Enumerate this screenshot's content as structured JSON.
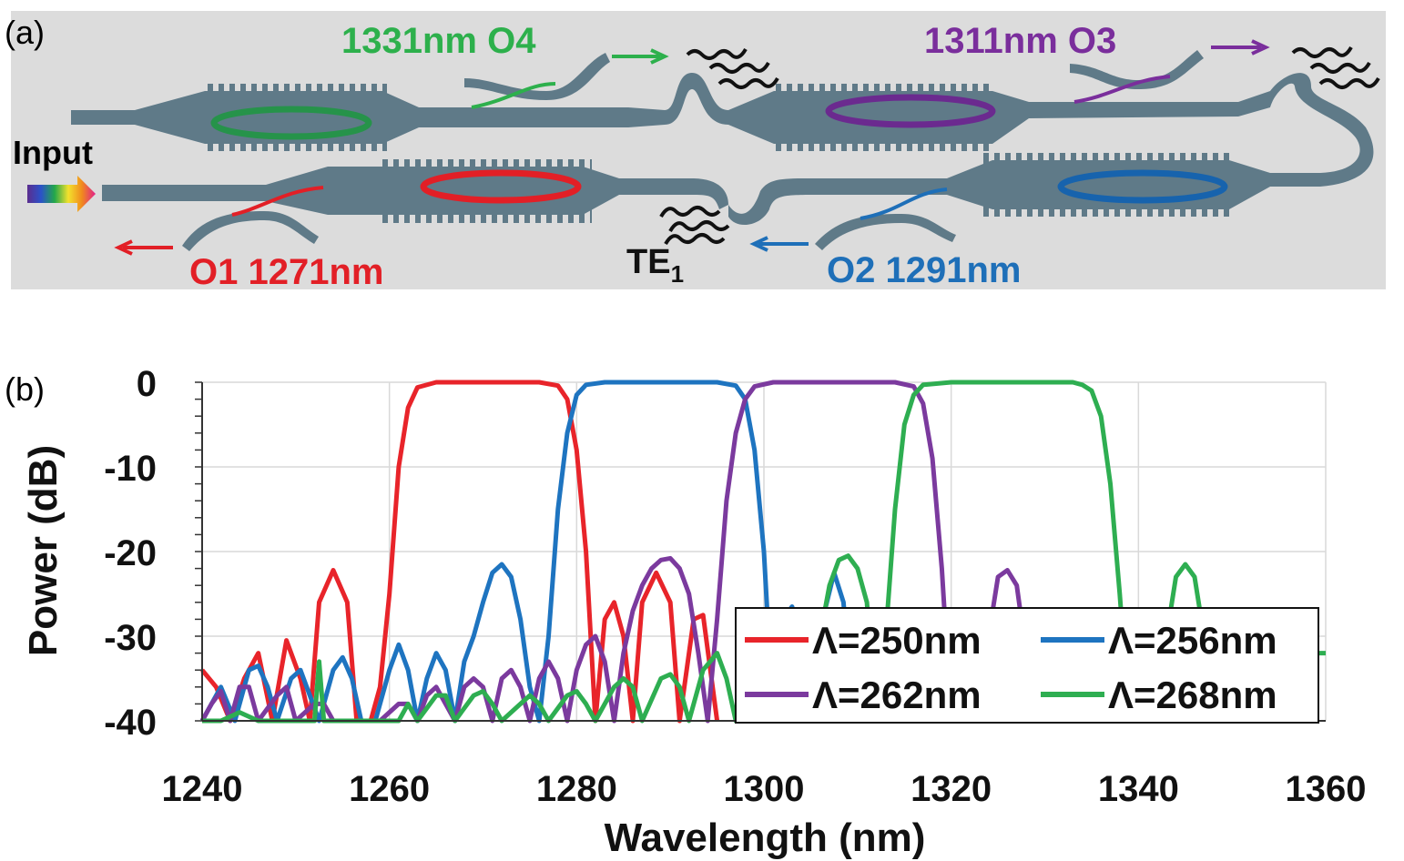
{
  "panel_a": {
    "label": "(a)",
    "input_label": "Input",
    "mode_label_main": "TE",
    "mode_label_sub": "1",
    "ports": [
      {
        "text": "1331nm O4",
        "color": "#2db04c"
      },
      {
        "text": "1311nm O3",
        "color": "#7a2e9c"
      },
      {
        "text": "O1 1271nm",
        "color": "#e21f26"
      },
      {
        "text": "O2 1291nm",
        "color": "#1e6fb8"
      }
    ]
  },
  "panel_b": {
    "label": "(b)"
  },
  "chart_data": {
    "type": "line",
    "xlabel": "Wavelength (nm)",
    "ylabel": "Power (dB)",
    "xlim": [
      1240,
      1360
    ],
    "ylim": [
      -40,
      0
    ],
    "xticks": [
      1240,
      1260,
      1280,
      1300,
      1320,
      1340,
      1360
    ],
    "yticks": [
      0,
      -10,
      -20,
      -30,
      -40
    ],
    "grid": true,
    "legend_position": "bottom-right",
    "series": [
      {
        "name": "Λ=250nm",
        "color": "#e8242a",
        "points": [
          [
            1240,
            -34
          ],
          [
            1241.5,
            -36
          ],
          [
            1243,
            -40
          ],
          [
            1244.5,
            -35
          ],
          [
            1246,
            -32
          ],
          [
            1247.5,
            -40
          ],
          [
            1249,
            -30.5
          ],
          [
            1250.5,
            -35
          ],
          [
            1251.5,
            -40
          ],
          [
            1252.5,
            -26
          ],
          [
            1254,
            -22.2
          ],
          [
            1255.5,
            -26
          ],
          [
            1256.5,
            -40
          ],
          [
            1258,
            -40
          ],
          [
            1259,
            -36
          ],
          [
            1260,
            -25
          ],
          [
            1261,
            -10
          ],
          [
            1262,
            -3
          ],
          [
            1263,
            -0.6
          ],
          [
            1265,
            0
          ],
          [
            1268,
            0
          ],
          [
            1272,
            0
          ],
          [
            1276,
            0
          ],
          [
            1278,
            -0.4
          ],
          [
            1279,
            -2
          ],
          [
            1280,
            -8
          ],
          [
            1281,
            -20
          ],
          [
            1282,
            -40
          ],
          [
            1283,
            -28
          ],
          [
            1284,
            -26
          ],
          [
            1285,
            -30
          ],
          [
            1286,
            -40
          ],
          [
            1287,
            -26
          ],
          [
            1288.5,
            -22.5
          ],
          [
            1290,
            -26
          ],
          [
            1291,
            -40
          ],
          [
            1292.5,
            -28
          ],
          [
            1293.5,
            -27.5
          ],
          [
            1295,
            -40
          ]
        ]
      },
      {
        "name": "Λ=256nm",
        "color": "#1e74c0",
        "points": [
          [
            1240,
            -40
          ],
          [
            1242,
            -36
          ],
          [
            1243.5,
            -40
          ],
          [
            1245,
            -34
          ],
          [
            1246,
            -33.5
          ],
          [
            1247,
            -36
          ],
          [
            1248,
            -40
          ],
          [
            1249.5,
            -35
          ],
          [
            1250.5,
            -34
          ],
          [
            1251.5,
            -37
          ],
          [
            1252.5,
            -40
          ],
          [
            1254,
            -34
          ],
          [
            1255,
            -32.5
          ],
          [
            1256,
            -35
          ],
          [
            1257,
            -40
          ],
          [
            1258.5,
            -40
          ],
          [
            1260,
            -34
          ],
          [
            1261,
            -31
          ],
          [
            1262,
            -34
          ],
          [
            1263,
            -40
          ],
          [
            1264,
            -35
          ],
          [
            1265,
            -32
          ],
          [
            1266,
            -34
          ],
          [
            1267,
            -40
          ],
          [
            1268,
            -33
          ],
          [
            1269,
            -30
          ],
          [
            1270,
            -26
          ],
          [
            1271,
            -22.5
          ],
          [
            1272,
            -21.5
          ],
          [
            1273,
            -23
          ],
          [
            1274,
            -28
          ],
          [
            1275,
            -36
          ],
          [
            1276,
            -40
          ],
          [
            1277,
            -30
          ],
          [
            1278,
            -15
          ],
          [
            1279,
            -6
          ],
          [
            1280,
            -1.5
          ],
          [
            1281,
            -0.3
          ],
          [
            1283,
            0
          ],
          [
            1290,
            0
          ],
          [
            1295,
            0
          ],
          [
            1297,
            -0.4
          ],
          [
            1298,
            -2
          ],
          [
            1299,
            -8
          ],
          [
            1300,
            -20
          ],
          [
            1301,
            -40
          ],
          [
            1302,
            -28
          ],
          [
            1303,
            -26.5
          ],
          [
            1304,
            -30
          ],
          [
            1305,
            -40
          ],
          [
            1306.5,
            -27
          ],
          [
            1307.5,
            -22.5
          ],
          [
            1308.5,
            -26
          ],
          [
            1309.5,
            -40
          ]
        ]
      },
      {
        "name": "Λ=262nm",
        "color": "#7b3a9e",
        "points": [
          [
            1240,
            -40
          ],
          [
            1241,
            -38
          ],
          [
            1242,
            -36.5
          ],
          [
            1243,
            -40
          ],
          [
            1244,
            -36
          ],
          [
            1245,
            -36
          ],
          [
            1246,
            -40
          ],
          [
            1248,
            -37
          ],
          [
            1249,
            -36
          ],
          [
            1250,
            -40
          ],
          [
            1252,
            -38
          ],
          [
            1253,
            -38
          ],
          [
            1254,
            -40
          ],
          [
            1256,
            -40
          ],
          [
            1259,
            -40
          ],
          [
            1261,
            -38
          ],
          [
            1262,
            -38
          ],
          [
            1263,
            -40
          ],
          [
            1264,
            -37
          ],
          [
            1265,
            -36
          ],
          [
            1266,
            -38
          ],
          [
            1267,
            -40
          ],
          [
            1268,
            -36
          ],
          [
            1269,
            -35
          ],
          [
            1270,
            -36
          ],
          [
            1271,
            -40
          ],
          [
            1272,
            -35
          ],
          [
            1273,
            -34
          ],
          [
            1274,
            -36
          ],
          [
            1275,
            -40
          ],
          [
            1276,
            -35
          ],
          [
            1277,
            -33
          ],
          [
            1278,
            -35
          ],
          [
            1279,
            -40
          ],
          [
            1280,
            -34
          ],
          [
            1281,
            -31
          ],
          [
            1282,
            -30
          ],
          [
            1283,
            -33
          ],
          [
            1284,
            -40
          ],
          [
            1285,
            -32
          ],
          [
            1286,
            -27
          ],
          [
            1287,
            -24
          ],
          [
            1288,
            -22
          ],
          [
            1289,
            -21
          ],
          [
            1290,
            -20.8
          ],
          [
            1291,
            -22
          ],
          [
            1292,
            -25
          ],
          [
            1293,
            -32
          ],
          [
            1294,
            -40
          ],
          [
            1295,
            -28
          ],
          [
            1296,
            -14
          ],
          [
            1297,
            -6
          ],
          [
            1298,
            -2
          ],
          [
            1299,
            -0.5
          ],
          [
            1301,
            0
          ],
          [
            1305,
            0
          ],
          [
            1310,
            0
          ],
          [
            1314,
            0
          ],
          [
            1316,
            -0.5
          ],
          [
            1317,
            -2.5
          ],
          [
            1318,
            -9
          ],
          [
            1319,
            -22
          ],
          [
            1320,
            -40
          ],
          [
            1322,
            -40
          ],
          [
            1324,
            -30
          ],
          [
            1325,
            -23
          ],
          [
            1326,
            -22.2
          ],
          [
            1327,
            -24
          ],
          [
            1328,
            -32
          ],
          [
            1329,
            -40
          ],
          [
            1331,
            -40
          ]
        ]
      },
      {
        "name": "Λ=268nm",
        "color": "#2eae51",
        "points": [
          [
            1240,
            -40
          ],
          [
            1242,
            -40
          ],
          [
            1244,
            -39
          ],
          [
            1246,
            -40
          ],
          [
            1250,
            -40
          ],
          [
            1252,
            -40
          ],
          [
            1252.5,
            -33
          ],
          [
            1253,
            -40
          ],
          [
            1258,
            -40
          ],
          [
            1261,
            -40
          ],
          [
            1262,
            -38
          ],
          [
            1263,
            -40
          ],
          [
            1265,
            -37
          ],
          [
            1266,
            -37
          ],
          [
            1267,
            -40
          ],
          [
            1269,
            -37
          ],
          [
            1270,
            -36.5
          ],
          [
            1271,
            -38
          ],
          [
            1272,
            -40
          ],
          [
            1274,
            -38
          ],
          [
            1275,
            -37
          ],
          [
            1276,
            -38
          ],
          [
            1277,
            -40
          ],
          [
            1279,
            -37
          ],
          [
            1280,
            -36.5
          ],
          [
            1281,
            -38
          ],
          [
            1282,
            -40
          ],
          [
            1284,
            -36
          ],
          [
            1285,
            -35
          ],
          [
            1286,
            -36
          ],
          [
            1287,
            -40
          ],
          [
            1289,
            -35
          ],
          [
            1290,
            -34.5
          ],
          [
            1291,
            -36
          ],
          [
            1292,
            -40
          ],
          [
            1293.5,
            -34
          ],
          [
            1295,
            -32
          ],
          [
            1296,
            -35
          ],
          [
            1297,
            -40
          ],
          [
            1298,
            -40
          ],
          [
            1305,
            -40
          ],
          [
            1306,
            -30
          ],
          [
            1307,
            -24
          ],
          [
            1308,
            -21
          ],
          [
            1309,
            -20.5
          ],
          [
            1310,
            -22
          ],
          [
            1311,
            -26
          ],
          [
            1312,
            -40
          ],
          [
            1313,
            -30
          ],
          [
            1314,
            -15
          ],
          [
            1315,
            -5
          ],
          [
            1316,
            -1.5
          ],
          [
            1317,
            -0.3
          ],
          [
            1320,
            0
          ],
          [
            1325,
            0
          ],
          [
            1330,
            0
          ],
          [
            1333,
            0
          ],
          [
            1334,
            -0.3
          ],
          [
            1335,
            -1
          ],
          [
            1336,
            -4
          ],
          [
            1337,
            -12
          ],
          [
            1338,
            -25
          ],
          [
            1339,
            -40
          ],
          [
            1342,
            -40
          ],
          [
            1343,
            -30
          ],
          [
            1344,
            -23
          ],
          [
            1345,
            -21.5
          ],
          [
            1346,
            -23
          ],
          [
            1347,
            -30
          ],
          [
            1348,
            -40
          ],
          [
            1349,
            -40
          ],
          [
            1350,
            -27
          ],
          [
            1351,
            -28
          ],
          [
            1352,
            -40
          ],
          [
            1358,
            -40
          ],
          [
            1359,
            -32
          ],
          [
            1360,
            -32
          ]
        ]
      }
    ]
  }
}
